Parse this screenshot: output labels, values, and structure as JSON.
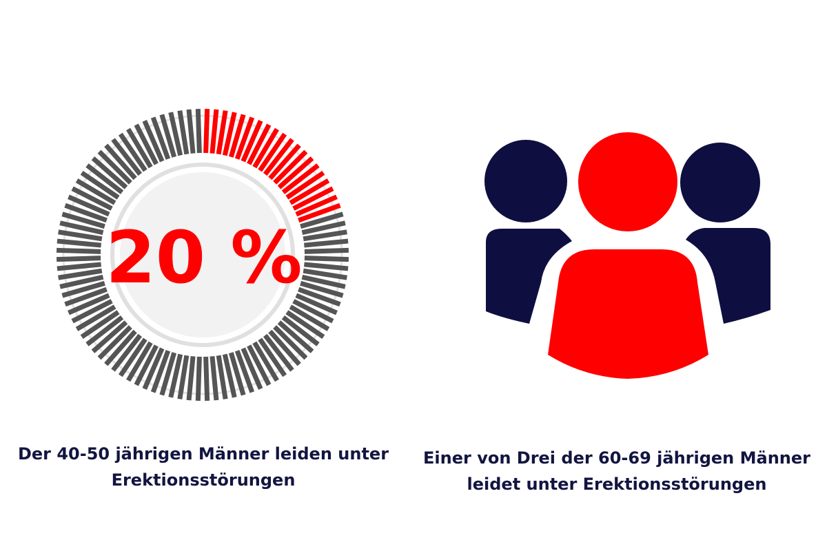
{
  "chart_data": [
    {
      "type": "gauge",
      "value": 20,
      "max": 100,
      "label": "20 %",
      "caption_lines": [
        "Der 40-50 jährigen Männer leiden unter",
        "Erektionsstörungen"
      ],
      "colors": {
        "filled": "#ff0000",
        "track": "#555555",
        "inner_ring": "#e0e0e0",
        "inner_disc": "#f2f2f2",
        "value_text": "#ff0000"
      }
    },
    {
      "type": "pictogram",
      "icon": "group-of-three-people-icon",
      "highlighted": 1,
      "total": 3,
      "caption_lines": [
        "Einer von Drei der 60-69 jährigen Männer",
        "leidet unter Erektionsstörungen"
      ],
      "colors": {
        "highlight": "#ff0000",
        "base": "#0e0f40"
      }
    }
  ],
  "colors": {
    "caption_text": "#121540",
    "background": "#ffffff"
  }
}
